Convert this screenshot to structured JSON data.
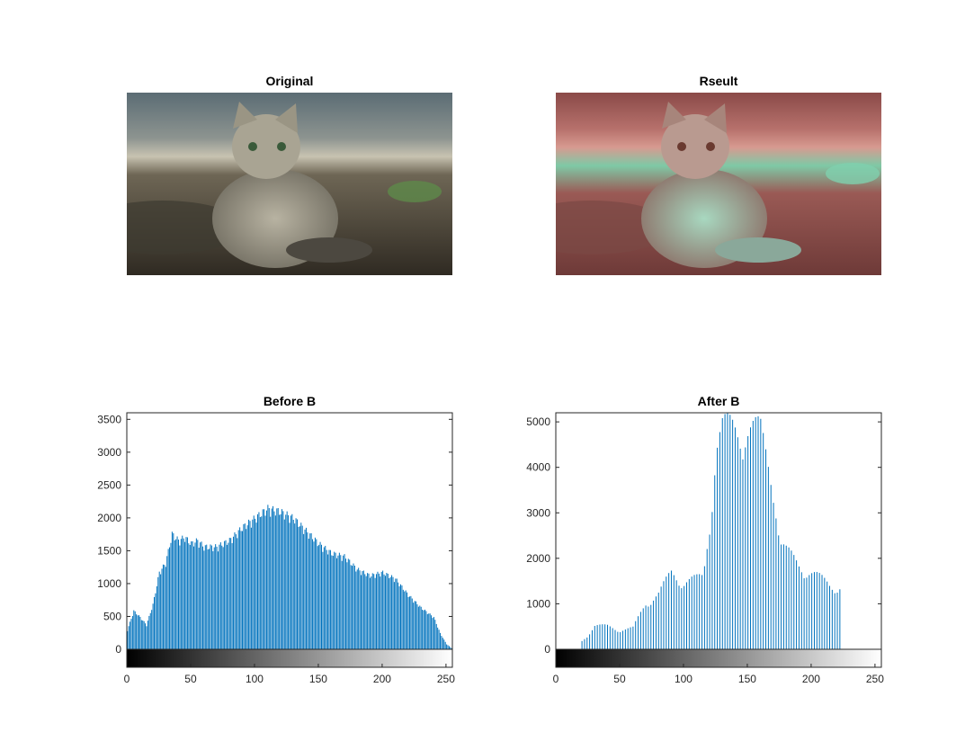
{
  "figure": {
    "panels": [
      {
        "title": "Original"
      },
      {
        "title": "Rseult"
      }
    ]
  },
  "colors": {
    "bar": "#0072BD",
    "axis": "#262626"
  },
  "chart_data": [
    {
      "type": "bar",
      "title": "Before B",
      "xlim": [
        0,
        255
      ],
      "ylim": [
        0,
        3600
      ],
      "xticks": [
        0,
        50,
        100,
        150,
        200,
        250
      ],
      "yticks": [
        0,
        500,
        1000,
        1500,
        2000,
        2500,
        3000,
        3500
      ],
      "colorbar": "grayscale 0-255",
      "profile": [
        [
          0,
          300
        ],
        [
          5,
          600
        ],
        [
          10,
          500
        ],
        [
          15,
          380
        ],
        [
          20,
          700
        ],
        [
          25,
          1200
        ],
        [
          30,
          1350
        ],
        [
          35,
          1800
        ],
        [
          40,
          1700
        ],
        [
          45,
          1750
        ],
        [
          50,
          1650
        ],
        [
          55,
          1700
        ],
        [
          60,
          1600
        ],
        [
          70,
          1600
        ],
        [
          80,
          1700
        ],
        [
          90,
          1900
        ],
        [
          100,
          2050
        ],
        [
          110,
          2200
        ],
        [
          120,
          2150
        ],
        [
          130,
          2050
        ],
        [
          140,
          1850
        ],
        [
          150,
          1650
        ],
        [
          160,
          1500
        ],
        [
          170,
          1450
        ],
        [
          180,
          1250
        ],
        [
          190,
          1150
        ],
        [
          200,
          1200
        ],
        [
          210,
          1100
        ],
        [
          220,
          850
        ],
        [
          230,
          650
        ],
        [
          240,
          500
        ],
        [
          245,
          250
        ],
        [
          250,
          80
        ],
        [
          255,
          0
        ]
      ]
    },
    {
      "type": "bar",
      "title": "After B",
      "xlim": [
        0,
        255
      ],
      "ylim": [
        0,
        5200
      ],
      "xticks": [
        0,
        50,
        100,
        150,
        200,
        250
      ],
      "yticks": [
        0,
        1000,
        2000,
        3000,
        4000,
        5000
      ],
      "colorbar": "grayscale 0-255",
      "comb_start": 20,
      "comb_end": 222,
      "profile": [
        [
          20,
          200
        ],
        [
          25,
          350
        ],
        [
          30,
          550
        ],
        [
          40,
          550
        ],
        [
          50,
          450
        ],
        [
          60,
          500
        ],
        [
          70,
          1100
        ],
        [
          80,
          1300
        ],
        [
          90,
          1800
        ],
        [
          100,
          1600
        ],
        [
          110,
          1650
        ],
        [
          115,
          1700
        ],
        [
          120,
          3000
        ],
        [
          125,
          4800
        ],
        [
          130,
          5200
        ],
        [
          140,
          5200
        ],
        [
          150,
          5200
        ],
        [
          160,
          5100
        ],
        [
          170,
          4000
        ],
        [
          175,
          2500
        ],
        [
          180,
          2300
        ],
        [
          190,
          2000
        ],
        [
          200,
          1800
        ],
        [
          210,
          1600
        ],
        [
          215,
          1500
        ],
        [
          222,
          1500
        ]
      ]
    }
  ]
}
